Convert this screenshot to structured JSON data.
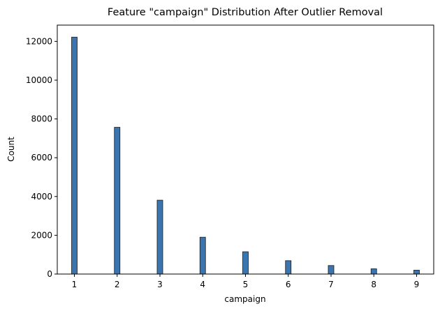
{
  "chart_data": {
    "type": "bar",
    "title": "Feature \"campaign\" Distribution After Outlier Removal",
    "xlabel": "campaign",
    "ylabel": "Count",
    "categories": [
      1,
      2,
      3,
      4,
      5,
      6,
      7,
      8,
      9
    ],
    "values": [
      12220,
      7570,
      3810,
      1900,
      1150,
      690,
      440,
      270,
      200
    ],
    "xlim": [
      0.6,
      9.4
    ],
    "ylim": [
      0,
      12840
    ],
    "xticks": [
      "1",
      "2",
      "3",
      "4",
      "5",
      "6",
      "7",
      "8",
      "9"
    ],
    "yticks": [
      "0",
      "2000",
      "4000",
      "6000",
      "8000",
      "10000",
      "12000"
    ],
    "grid": false,
    "bar_color": "#3b75af"
  }
}
